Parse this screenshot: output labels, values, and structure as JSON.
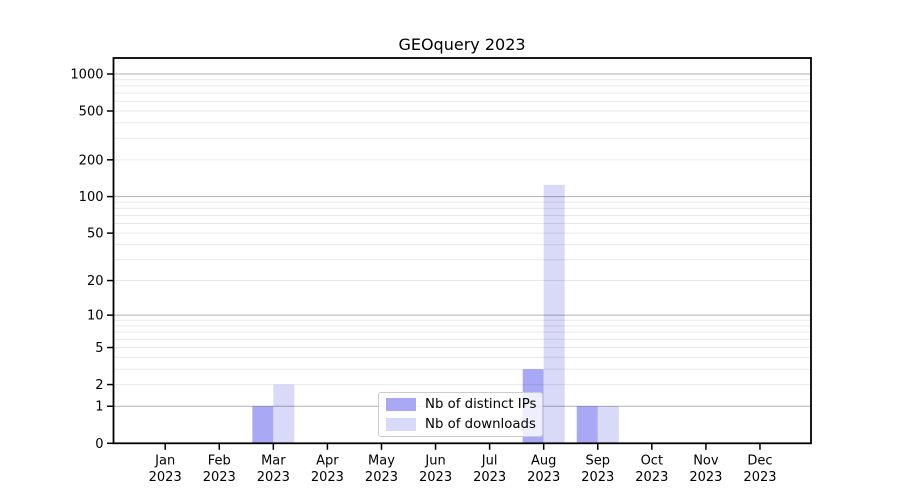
{
  "chart_data": {
    "type": "bar",
    "title": "GEOquery 2023",
    "x_ticks": [
      {
        "line1": "Jan",
        "line2": "2023"
      },
      {
        "line1": "Feb",
        "line2": "2023"
      },
      {
        "line1": "Mar",
        "line2": "2023"
      },
      {
        "line1": "Apr",
        "line2": "2023"
      },
      {
        "line1": "May",
        "line2": "2023"
      },
      {
        "line1": "Jun",
        "line2": "2023"
      },
      {
        "line1": "Jul",
        "line2": "2023"
      },
      {
        "line1": "Aug",
        "line2": "2023"
      },
      {
        "line1": "Sep",
        "line2": "2023"
      },
      {
        "line1": "Oct",
        "line2": "2023"
      },
      {
        "line1": "Nov",
        "line2": "2023"
      },
      {
        "line1": "Dec",
        "line2": "2023"
      }
    ],
    "series": [
      {
        "name": "Nb of distinct IPs",
        "color": "#a8a8f5",
        "values": [
          0,
          0,
          1,
          0,
          0,
          0,
          0,
          3,
          1,
          0,
          0,
          0
        ]
      },
      {
        "name": "Nb of downloads",
        "color": "#d9d9f8",
        "values": [
          0,
          0,
          2,
          0,
          0,
          0,
          0,
          125,
          1,
          0,
          0,
          0
        ]
      }
    ],
    "y_scale": "log10(1+y)",
    "y_tick_values": [
      0,
      1,
      2,
      5,
      10,
      20,
      50,
      100,
      200,
      500,
      1000
    ],
    "y_major_grid": [
      1,
      10,
      100,
      1000
    ],
    "y_minor_grid": [
      2,
      3,
      4,
      5,
      6,
      7,
      8,
      9,
      20,
      30,
      40,
      50,
      60,
      70,
      80,
      90,
      200,
      300,
      400,
      500,
      600,
      700,
      800,
      900
    ],
    "ylim": [
      0,
      1350
    ],
    "grid": true,
    "legend_position": "lower center"
  },
  "colors": {
    "background": "#ffffff",
    "axis": "#000000",
    "text": "#000000",
    "grid_major": "rgba(0,0,0,0.30)",
    "grid_minor": "rgba(0,0,0,0.085)",
    "legend_border": "#cccccc",
    "legend_background": "rgba(255,255,255,0.8)"
  }
}
